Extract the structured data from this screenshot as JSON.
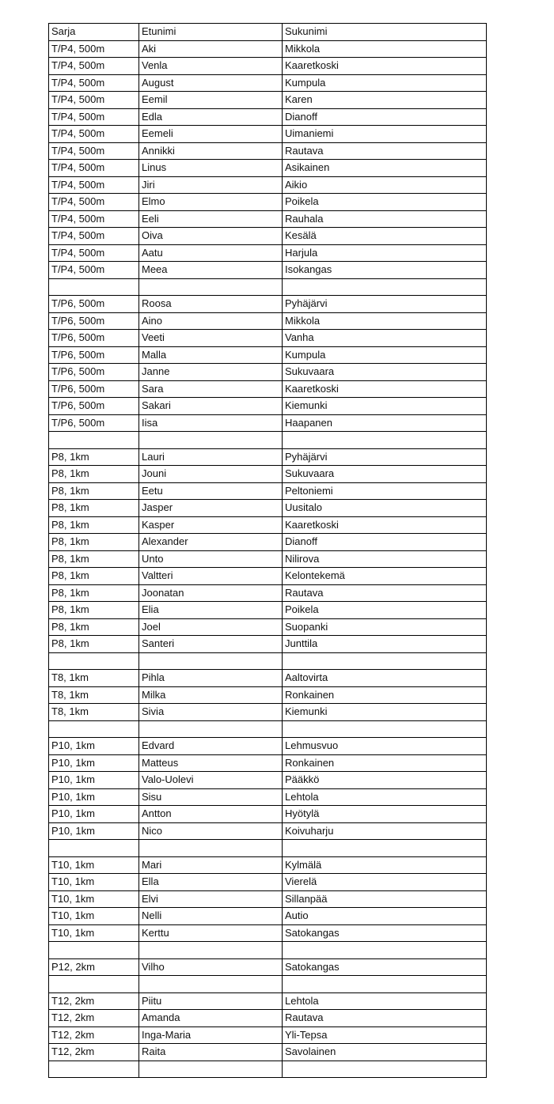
{
  "table": {
    "headers": [
      "Sarja",
      "Etunimi",
      "Sukunimi"
    ],
    "rows": [
      [
        "T/P4, 500m",
        "Aki",
        "Mikkola"
      ],
      [
        "T/P4, 500m",
        "Venla",
        "Kaaretkoski"
      ],
      [
        "T/P4, 500m",
        "August",
        "Kumpula"
      ],
      [
        "T/P4, 500m",
        "Eemil",
        "Karen"
      ],
      [
        "T/P4, 500m",
        "Edla",
        "Dianoff"
      ],
      [
        "T/P4, 500m",
        "Eemeli",
        "Uimaniemi"
      ],
      [
        "T/P4, 500m",
        "Annikki",
        "Rautava"
      ],
      [
        "T/P4, 500m",
        "Linus",
        "Asikainen"
      ],
      [
        "T/P4, 500m",
        "Jiri",
        "Aikio"
      ],
      [
        "T/P4, 500m",
        "Elmo",
        "Poikela"
      ],
      [
        "T/P4, 500m",
        "Eeli",
        "Rauhala"
      ],
      [
        "T/P4, 500m",
        "Oiva",
        "Kesälä"
      ],
      [
        "T/P4, 500m",
        "Aatu",
        "Harjula"
      ],
      [
        "T/P4, 500m",
        "Meea",
        "Isokangas"
      ],
      [
        "",
        "",
        ""
      ],
      [
        "T/P6, 500m",
        "Roosa",
        "Pyhäjärvi"
      ],
      [
        "T/P6, 500m",
        "Aino",
        "Mikkola"
      ],
      [
        "T/P6, 500m",
        "Veeti",
        "Vanha"
      ],
      [
        "T/P6, 500m",
        "Malla",
        "Kumpula"
      ],
      [
        "T/P6, 500m",
        "Janne",
        "Sukuvaara"
      ],
      [
        "T/P6, 500m",
        "Sara",
        "Kaaretkoski"
      ],
      [
        "T/P6, 500m",
        "Sakari",
        "Kiemunki"
      ],
      [
        "T/P6, 500m",
        "Iisa",
        "Haapanen"
      ],
      [
        "",
        "",
        ""
      ],
      [
        "P8, 1km",
        "Lauri",
        "Pyhäjärvi"
      ],
      [
        "P8, 1km",
        "Jouni",
        "Sukuvaara"
      ],
      [
        "P8, 1km",
        "Eetu",
        "Peltoniemi"
      ],
      [
        "P8, 1km",
        "Jasper",
        "Uusitalo"
      ],
      [
        "P8, 1km",
        "Kasper",
        "Kaaretkoski"
      ],
      [
        "P8, 1km",
        "Alexander",
        "Dianoff"
      ],
      [
        "P8, 1km",
        "Unto",
        "Nilirova"
      ],
      [
        "P8, 1km",
        "Valtteri",
        "Kelontekemä"
      ],
      [
        "P8, 1km",
        "Joonatan",
        "Rautava"
      ],
      [
        "P8, 1km",
        "Elia",
        "Poikela"
      ],
      [
        "P8, 1km",
        "Joel",
        "Suopanki"
      ],
      [
        "P8, 1km",
        "Santeri",
        "Junttila"
      ],
      [
        "",
        "",
        ""
      ],
      [
        "T8, 1km",
        "Pihla",
        "Aaltovirta"
      ],
      [
        "T8, 1km",
        "Milka",
        "Ronkainen"
      ],
      [
        "T8, 1km",
        "Sivia",
        "Kiemunki"
      ],
      [
        "",
        "",
        ""
      ],
      [
        "P10, 1km",
        "Edvard",
        "Lehmusvuo"
      ],
      [
        "P10, 1km",
        "Matteus",
        "Ronkainen"
      ],
      [
        "P10, 1km",
        "Valo-Uolevi",
        "Pääkkö"
      ],
      [
        "P10, 1km",
        "Sisu",
        "Lehtola"
      ],
      [
        "P10, 1km",
        "Antton",
        "Hyötylä"
      ],
      [
        "P10, 1km",
        "Nico",
        "Koivuharju"
      ],
      [
        "",
        "",
        ""
      ],
      [
        "T10, 1km",
        "Mari",
        "Kylmälä"
      ],
      [
        "T10, 1km",
        "Ella",
        "Vierelä"
      ],
      [
        "T10, 1km",
        "Elvi",
        "Sillanpää"
      ],
      [
        "T10, 1km",
        "Nelli",
        "Autio"
      ],
      [
        "T10, 1km",
        "Kerttu",
        "Satokangas"
      ],
      [
        "",
        "",
        ""
      ],
      [
        "P12, 2km",
        "Vilho",
        "Satokangas"
      ],
      [
        "",
        "",
        ""
      ],
      [
        "T12, 2km",
        "Piitu",
        "Lehtola"
      ],
      [
        "T12, 2km",
        "Amanda",
        "Rautava"
      ],
      [
        "T12, 2km",
        "Inga-Maria",
        "Yli-Tepsa"
      ],
      [
        "T12, 2km",
        "Raita",
        "Savolainen"
      ],
      [
        "",
        "",
        ""
      ]
    ]
  }
}
